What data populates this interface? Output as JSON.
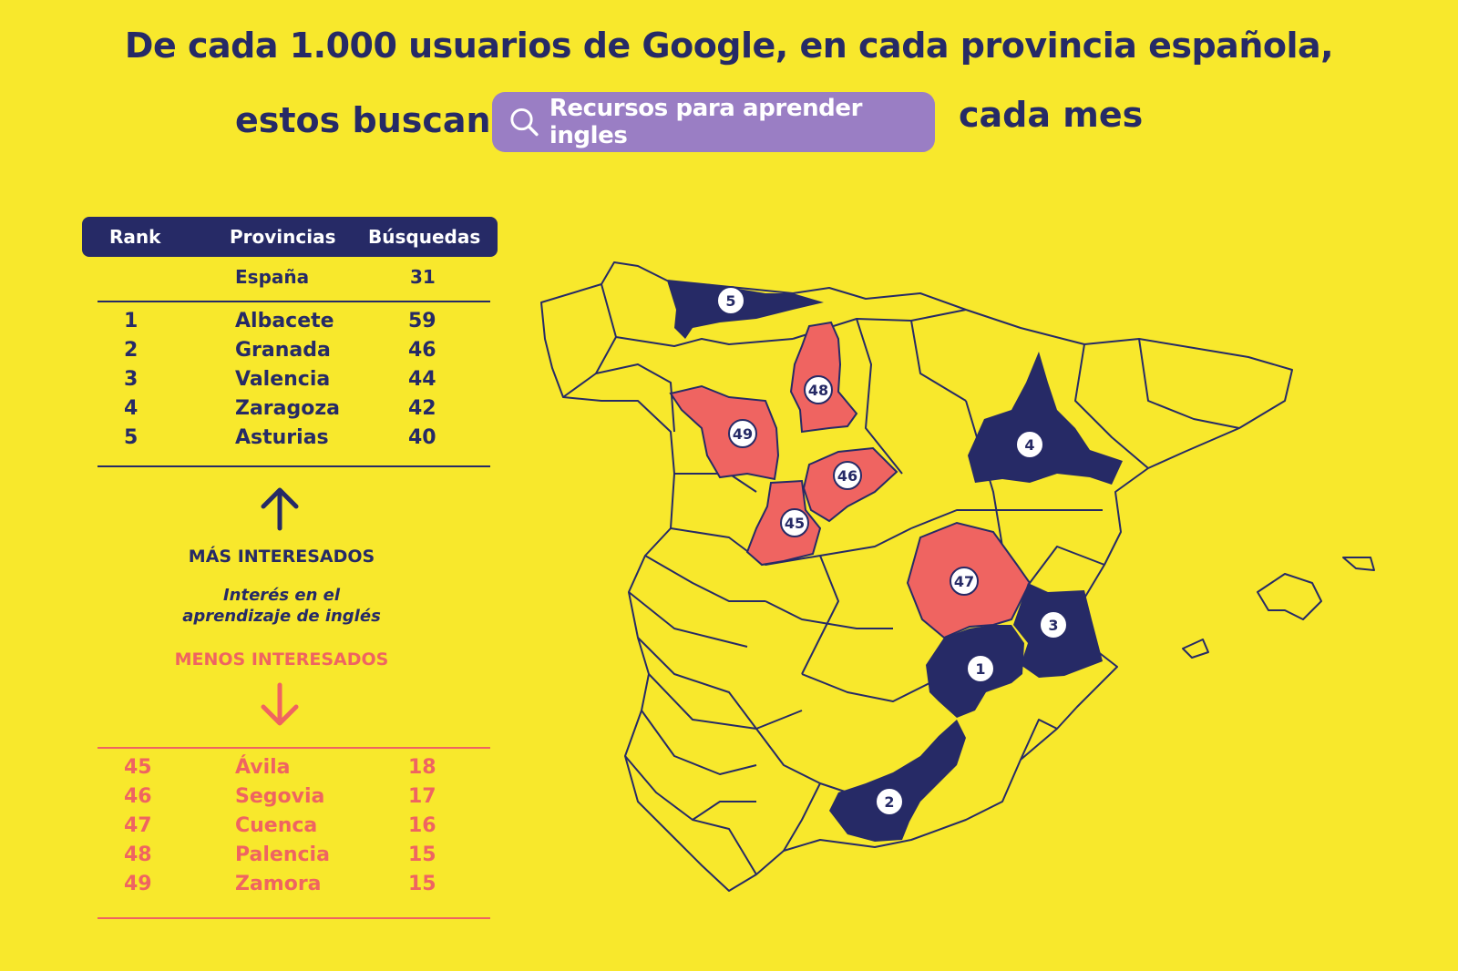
{
  "header": {
    "line1": "De cada 1.000 usuarios de Google,  en cada provincia española,",
    "line2_before": "estos buscan",
    "search_query": "Recursos para aprender ingles",
    "line2_after": "cada mes"
  },
  "table": {
    "columns": [
      "Rank",
      "Provincias",
      "Búsquedas"
    ],
    "national": {
      "province": "España",
      "value": "31"
    },
    "top": [
      {
        "rank": "1",
        "province": "Albacete",
        "value": "59"
      },
      {
        "rank": "2",
        "province": "Granada",
        "value": "46"
      },
      {
        "rank": "3",
        "province": "Valencia",
        "value": "44"
      },
      {
        "rank": "4",
        "province": "Zaragoza",
        "value": "42"
      },
      {
        "rank": "5",
        "province": "Asturias",
        "value": "40"
      }
    ],
    "bottom": [
      {
        "rank": "45",
        "province": "Ávila",
        "value": "18"
      },
      {
        "rank": "46",
        "province": "Segovia",
        "value": "17"
      },
      {
        "rank": "47",
        "province": "Cuenca",
        "value": "16"
      },
      {
        "rank": "48",
        "province": "Palencia",
        "value": "15"
      },
      {
        "rank": "49",
        "province": "Zamora",
        "value": "15"
      }
    ]
  },
  "legend": {
    "more": "MÁS INTERESADOS",
    "interest_line1": "Interés en el",
    "interest_line2": "aprendizaje de inglés",
    "less": "MENOS INTERESADOS"
  },
  "map": {
    "colors": {
      "background": "#f8e82c",
      "top": "#262a66",
      "bottom": "#ef6461",
      "outline": "#262a66"
    },
    "markers": [
      "5",
      "48",
      "49",
      "4",
      "46",
      "45",
      "47",
      "3",
      "1",
      "2"
    ]
  }
}
